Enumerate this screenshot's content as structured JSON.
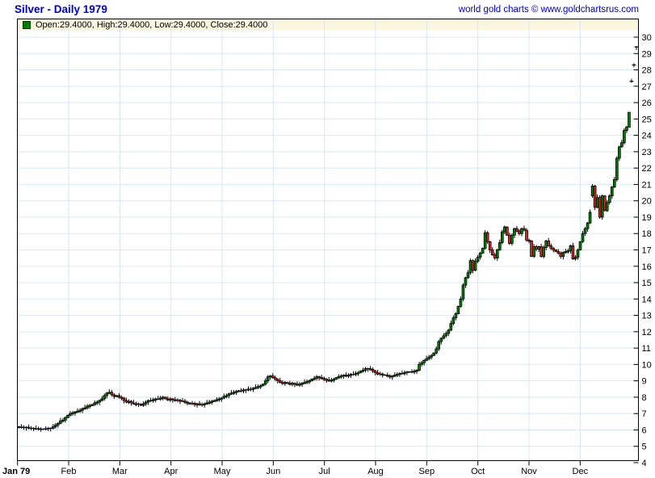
{
  "header": {
    "title": "Silver - Daily 1979",
    "copyright": "world gold charts © www.goldchartsrus.com"
  },
  "legend": {
    "text": "Open:29.4000, High:29.4000, Low:29.4000, Close:29.4000",
    "marker_color": "#008000"
  },
  "chart_data": {
    "type": "candlestick",
    "title": "Silver - Daily 1979",
    "xlabel": "",
    "ylabel": "",
    "x_labels": [
      "Jan 79",
      "Feb",
      "Mar",
      "Apr",
      "May",
      "Jun",
      "Jul",
      "Aug",
      "Sep",
      "Oct",
      "Nov",
      "Dec"
    ],
    "y_ticks": [
      4,
      5,
      6,
      7,
      8,
      9,
      10,
      11,
      12,
      13,
      14,
      15,
      16,
      17,
      18,
      19,
      20,
      21,
      22,
      23,
      24,
      25,
      26,
      27,
      28,
      29,
      30
    ],
    "ylim": [
      4.1,
      31.1
    ],
    "grid": true,
    "last_bar": {
      "open": 29.4,
      "high": 29.4,
      "low": 29.4,
      "close": 29.4
    },
    "closes": [
      6.2,
      6.17,
      6.14,
      6.16,
      6.12,
      6.1,
      6.09,
      6.06,
      6.07,
      6.04,
      6.05,
      6.06,
      6.08,
      6.1,
      6.2,
      6.3,
      6.4,
      6.55,
      6.6,
      6.75,
      6.9,
      7.0,
      7.05,
      7.1,
      7.15,
      7.2,
      7.3,
      7.35,
      7.45,
      7.5,
      7.55,
      7.65,
      7.7,
      7.8,
      7.9,
      8.1,
      8.25,
      8.3,
      8.15,
      8.05,
      8.1,
      8.0,
      7.95,
      7.8,
      7.7,
      7.75,
      7.65,
      7.6,
      7.55,
      7.58,
      7.5,
      7.6,
      7.7,
      7.8,
      7.78,
      7.85,
      7.9,
      7.88,
      7.95,
      8.0,
      7.9,
      7.85,
      7.9,
      7.85,
      7.8,
      7.82,
      7.75,
      7.76,
      7.7,
      7.65,
      7.6,
      7.62,
      7.55,
      7.6,
      7.55,
      7.53,
      7.6,
      7.65,
      7.7,
      7.75,
      7.8,
      7.85,
      7.9,
      7.95,
      8.05,
      8.1,
      8.2,
      8.25,
      8.3,
      8.35,
      8.4,
      8.38,
      8.45,
      8.44,
      8.5,
      8.48,
      8.55,
      8.6,
      8.65,
      8.7,
      8.8,
      9.0,
      9.25,
      9.3,
      9.2,
      9.1,
      9.0,
      8.9,
      8.85,
      8.9,
      8.85,
      8.8,
      8.85,
      8.8,
      8.75,
      8.8,
      8.85,
      8.9,
      8.95,
      9.0,
      9.1,
      9.15,
      9.25,
      9.2,
      9.15,
      9.1,
      9.05,
      9.0,
      9.05,
      9.1,
      9.2,
      9.25,
      9.3,
      9.35,
      9.3,
      9.35,
      9.4,
      9.38,
      9.45,
      9.5,
      9.6,
      9.65,
      9.75,
      9.74,
      9.7,
      9.6,
      9.5,
      9.4,
      9.42,
      9.36,
      9.35,
      9.3,
      9.25,
      9.3,
      9.35,
      9.4,
      9.45,
      9.44,
      9.5,
      9.52,
      9.55,
      9.54,
      9.6,
      9.65,
      10.0,
      10.1,
      10.25,
      10.35,
      10.45,
      10.55,
      10.7,
      10.95,
      11.4,
      11.6,
      11.75,
      11.9,
      12.1,
      12.5,
      12.85,
      13.1,
      13.55,
      14.0,
      14.85,
      15.3,
      15.6,
      16.35,
      15.75,
      16.3,
      16.55,
      16.8,
      17.1,
      18.05,
      17.5,
      17.0,
      16.7,
      16.5,
      17.0,
      17.45,
      18.1,
      18.4,
      17.9,
      17.4,
      17.9,
      18.3,
      18.15,
      18.0,
      18.3,
      18.2,
      17.6,
      17.55,
      16.6,
      17.2,
      17.05,
      17.2,
      16.6,
      17.15,
      17.55,
      17.25,
      17.1,
      17.0,
      16.9,
      16.8,
      16.6,
      16.85,
      16.9,
      16.95,
      17.25,
      16.45,
      16.55,
      17.0,
      17.5,
      18.0,
      18.3,
      18.65,
      19.3,
      20.9,
      19.6,
      20.2,
      19.0,
      20.3,
      19.4,
      19.9,
      20.3,
      20.85,
      21.3,
      22.6,
      23.3,
      23.55,
      24.3,
      24.5,
      25.4,
      27.3,
      28.3,
      29.4
    ],
    "special_opens": {
      "235": 20.3,
      "251": 27.3,
      "252": 28.3,
      "253": 29.4
    },
    "colors": {
      "up": "#008000",
      "down": "#dd2020",
      "wick": "#000000",
      "grid": "#d8e7f5",
      "axis": "#000000",
      "legend_bg": "#fbf6e0",
      "accent_blue": "#0000cc"
    }
  }
}
